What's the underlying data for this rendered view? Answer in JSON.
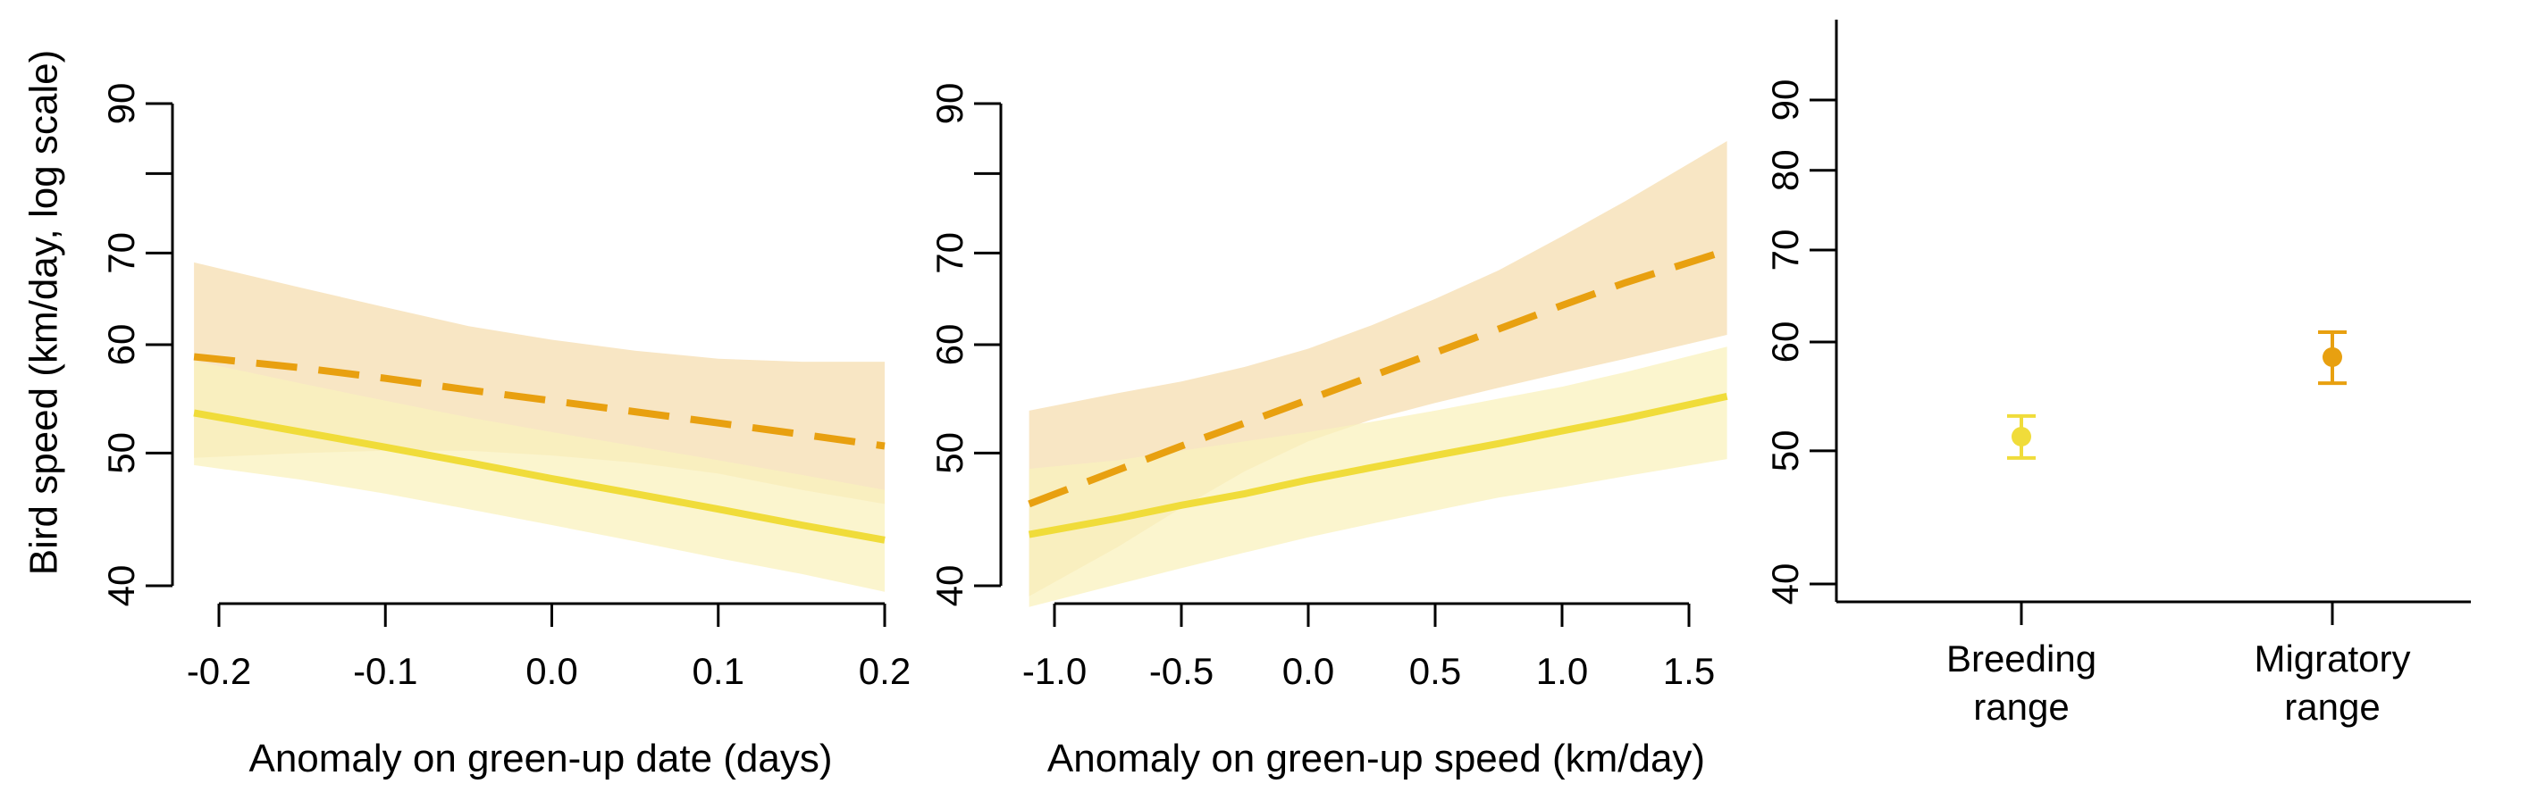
{
  "figure": {
    "ylabel": "Bird speed (km/day, log scale)",
    "colors": {
      "breeding": "#F0DC3A",
      "migratory": "#E8A010",
      "breeding_band": "#FAF2BE",
      "migratory_band": "#F6DDB0"
    }
  },
  "chart_data": [
    {
      "type": "line",
      "panel": "left",
      "xlabel": "Anomaly on green-up date (days)",
      "ylabel": "Bird speed (km/day, log scale)",
      "yscale": "log",
      "xlim": [
        -0.215,
        0.2
      ],
      "ylim": [
        40,
        97
      ],
      "xticks": [
        -0.2,
        -0.1,
        0.0,
        0.1,
        0.2
      ],
      "xtick_labels": [
        "-0.2",
        "-0.1",
        "0.0",
        "0.1",
        "0.2"
      ],
      "yticks": [
        40,
        50,
        60,
        70,
        80,
        90
      ],
      "ytick_labels": [
        "40",
        "50",
        "60",
        "70",
        "",
        "90"
      ],
      "series": [
        {
          "key": "migratory",
          "style": "dashed",
          "x": [
            -0.215,
            -0.15,
            -0.1,
            -0.05,
            0.0,
            0.05,
            0.1,
            0.15,
            0.2
          ],
          "y": [
            58.8,
            57.7,
            56.7,
            55.6,
            54.6,
            53.6,
            52.6,
            51.6,
            50.6
          ],
          "lower": [
            49.6,
            50.0,
            50.2,
            50.2,
            49.8,
            49.2,
            48.3,
            47.0,
            45.9
          ],
          "upper": [
            68.9,
            66.0,
            63.9,
            61.9,
            60.5,
            59.4,
            58.6,
            58.3,
            58.3
          ]
        },
        {
          "key": "breeding",
          "style": "solid",
          "x": [
            -0.215,
            -0.15,
            -0.1,
            -0.05,
            0.0,
            0.05,
            0.1,
            0.15,
            0.2
          ],
          "y": [
            53.5,
            51.8,
            50.5,
            49.2,
            47.9,
            46.7,
            45.5,
            44.3,
            43.2
          ],
          "lower": [
            49.0,
            47.8,
            46.7,
            45.5,
            44.3,
            43.1,
            41.9,
            40.8,
            39.6
          ],
          "upper": [
            58.4,
            56.2,
            54.6,
            53.1,
            51.8,
            50.6,
            49.4,
            48.2,
            47.0
          ]
        }
      ]
    },
    {
      "type": "line",
      "panel": "middle",
      "xlabel": "Anomaly on green-up speed (km/day)",
      "ylabel": "",
      "yscale": "log",
      "xlim": [
        -1.1,
        1.65
      ],
      "ylim": [
        40,
        97
      ],
      "xticks": [
        -1.0,
        -0.5,
        0.0,
        0.5,
        1.0,
        1.5
      ],
      "xtick_labels": [
        "-1.0",
        "-0.5",
        "0.0",
        "0.5",
        "1.0",
        "1.5"
      ],
      "yticks": [
        40,
        50,
        60,
        70,
        80,
        90
      ],
      "ytick_labels": [
        "40",
        "50",
        "60",
        "70",
        "",
        "90"
      ],
      "series": [
        {
          "key": "migratory",
          "style": "dashed",
          "x": [
            -1.1,
            -0.75,
            -0.5,
            -0.25,
            0.0,
            0.25,
            0.5,
            0.75,
            1.0,
            1.25,
            1.65
          ],
          "y": [
            45.9,
            48.6,
            50.6,
            52.6,
            54.7,
            56.9,
            59.2,
            61.6,
            64.1,
            66.6,
            70.3
          ],
          "lower": [
            39.3,
            42.7,
            45.6,
            48.5,
            51.0,
            52.9,
            54.4,
            55.8,
            57.2,
            58.6,
            61.0
          ],
          "upper": [
            53.7,
            55.3,
            56.4,
            57.8,
            59.6,
            62.0,
            64.8,
            68.0,
            72.0,
            76.4,
            84.5
          ]
        },
        {
          "key": "breeding",
          "style": "solid",
          "x": [
            -1.1,
            -0.75,
            -0.5,
            -0.25,
            0.0,
            0.25,
            0.5,
            0.75,
            1.0,
            1.25,
            1.65
          ],
          "y": [
            43.6,
            44.8,
            45.8,
            46.7,
            47.8,
            48.8,
            49.8,
            50.8,
            51.9,
            53.0,
            55.0
          ],
          "lower": [
            38.6,
            40.1,
            41.2,
            42.3,
            43.4,
            44.4,
            45.4,
            46.4,
            47.2,
            48.1,
            49.5
          ],
          "upper": [
            48.7,
            49.4,
            50.2,
            51.0,
            51.8,
            52.7,
            53.7,
            54.8,
            55.9,
            57.3,
            59.8
          ]
        }
      ]
    },
    {
      "type": "scatter",
      "panel": "right",
      "categories": [
        "Breeding\nrange",
        "Migratory\nrange"
      ],
      "yscale": "log",
      "ylim": [
        39,
        103
      ],
      "yticks": [
        40,
        50,
        60,
        70,
        80,
        90
      ],
      "ytick_labels": [
        "40",
        "50",
        "60",
        "70",
        "80",
        "90"
      ],
      "points": [
        {
          "key": "breeding",
          "y": 51.2,
          "lower": 49.4,
          "upper": 53.0
        },
        {
          "key": "migratory",
          "y": 58.5,
          "lower": 56.0,
          "upper": 61.0
        }
      ]
    }
  ]
}
